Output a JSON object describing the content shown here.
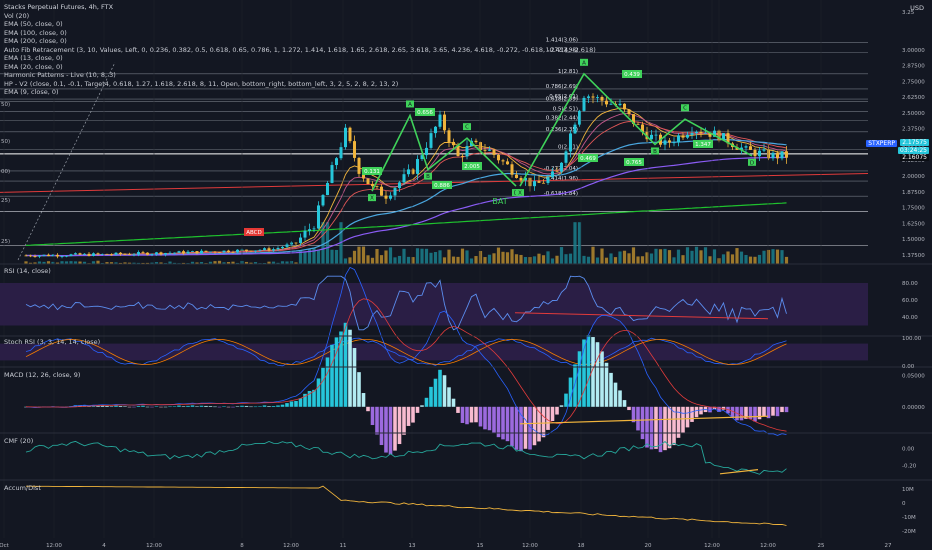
{
  "title": "Stacks Perpetual Futures, 4h, FTX",
  "legend_main": [
    "Vol (20)",
    "EMA (50, close, 0)",
    "EMA (100, close, 0)",
    "EMA (200, close, 0)",
    "Auto Fib Retracement (3, 10, Values, Left, 0, 0.236, 0.382, 0.5, 0.618, 0.65, 0.786, 1, 1.272, 1.414, 1.618, 1.65, 2.618, 2.65, 3.618, 3.65, 4.236, 4.618, -0.272, -0.618, -0.414, -2.618)",
    "EMA (13, close, 0)",
    "EMA (20, close, 0)",
    "Harmonic Patterns - Live (10, 8, 3)",
    "HP - V2 (close, 0.1, -0.1, Target4, 0.618, 1.27, 1.618, 2.618, 8, 11, Open, bottom_right, bottom_left, 3, 2, 5, 2, 8, 2, 13, 2)",
    "EMA (9, close, 0)"
  ],
  "currency": "USD",
  "symbol_tag": "STXPERP",
  "price_tag": "2.17575",
  "countdown": "03:24:25",
  "price_tag2": "2.16075",
  "price_axis": [
    "3.25",
    "3.00000",
    "2.87500",
    "2.75000",
    "2.62500",
    "2.50000",
    "2.37500",
    "2.25000",
    "2.12500",
    "2.00000",
    "1.87500",
    "1.75000",
    "1.62500",
    "1.50000",
    "1.37500"
  ],
  "left_axis_fragments": [
    "50)",
    "50)",
    "00)",
    "25)",
    "25)"
  ],
  "time_axis": [
    "Oct",
    "12:00",
    "4",
    "12:00",
    "8",
    "12:00",
    "11",
    "13",
    "15",
    "12:00",
    "18",
    "20",
    "12:00",
    "22",
    "12:00",
    "25",
    "27"
  ],
  "fib_levels": [
    "1.414(3.06)",
    "1.272(2.98)",
    "1(2.81)",
    "0.786(2.69)",
    "0.65(2.61)",
    "0.618(2.59)",
    "0.5(2.51)",
    "0.382(2.44)",
    "0.236(2.35)",
    "0(2.21)",
    "-0.272(2.04)",
    "-0.414(1.96)",
    "-0.618(1.84)"
  ],
  "pattern_labels": {
    "A1": "A",
    "B1": "B",
    "C1": "C",
    "D1": "D",
    "X1": "X",
    "r1": "0.131",
    "r2": "0.656",
    "r3": "2.005",
    "r4": "0.886",
    "X2": "X",
    "A2": "A",
    "B2": "B",
    "C2": "C",
    "D2": "D",
    "r5": "0.469",
    "r6": "0.439",
    "r7": "0.765",
    "r8": "1.347",
    "bat": "BAT",
    "abcd": "ABCD"
  },
  "rsi": {
    "legend": "RSI (14, close)",
    "axis": [
      "80.00",
      "60.00",
      "40.00"
    ]
  },
  "stoch": {
    "legend": "Stoch RSI (3, 3, 14, 14, close)",
    "axis": [
      "100.00",
      "0.00"
    ]
  },
  "macd": {
    "legend": "MACD (12, 26, close, 9)",
    "axis": [
      "0.05000",
      "0.00000"
    ]
  },
  "cmf": {
    "legend": "CMF (20)",
    "axis": [
      "0.00",
      "-0.20"
    ]
  },
  "accum": {
    "legend": "Accum/Dist",
    "axis": [
      "10M",
      "0",
      "-10M",
      "-20M"
    ]
  },
  "colors": {
    "bg": "#131722",
    "up": "#26c6da",
    "down": "#f0b43c",
    "pattern": "#3fd25a",
    "ema50": "#4aa7e0",
    "ema100": "#8b5cf6",
    "ema200": "#1fc22e",
    "ema13": "#c2578a",
    "ema20": "#e05757",
    "rsi_band": "#2a1e45",
    "accent_blue": "#2962ff"
  },
  "chart_data": {
    "type": "line",
    "title": "Stacks Perpetual Futures, 4h, FTX",
    "price": {
      "ylim": [
        1.35,
        3.3
      ],
      "close_now": 2.16075,
      "anchors": [
        {
          "t": 0,
          "v": 1.37
        },
        {
          "t": 20,
          "v": 1.38
        },
        {
          "t": 40,
          "v": 1.4
        },
        {
          "t": 55,
          "v": 1.42
        },
        {
          "t": 60,
          "v": 1.47
        },
        {
          "t": 64,
          "v": 1.62
        },
        {
          "t": 68,
          "v": 2.05
        },
        {
          "t": 71,
          "v": 2.35
        },
        {
          "t": 74,
          "v": 2.05
        },
        {
          "t": 77,
          "v": 1.9
        },
        {
          "t": 80,
          "v": 1.85
        },
        {
          "t": 86,
          "v": 2.05
        },
        {
          "t": 92,
          "v": 2.45
        },
        {
          "t": 96,
          "v": 2.15
        },
        {
          "t": 99,
          "v": 2.25
        },
        {
          "t": 103,
          "v": 2.2
        },
        {
          "t": 108,
          "v": 2.05
        },
        {
          "t": 113,
          "v": 1.92
        },
        {
          "t": 118,
          "v": 2.02
        },
        {
          "t": 124,
          "v": 2.65
        },
        {
          "t": 128,
          "v": 2.6
        },
        {
          "t": 132,
          "v": 2.55
        },
        {
          "t": 137,
          "v": 2.35
        },
        {
          "t": 142,
          "v": 2.25
        },
        {
          "t": 148,
          "v": 2.38
        },
        {
          "t": 154,
          "v": 2.32
        },
        {
          "t": 160,
          "v": 2.2
        },
        {
          "t": 166,
          "v": 2.16
        }
      ]
    },
    "harmonic_1": {
      "X": 1.88,
      "A": 2.48,
      "B": 2.05,
      "C": 2.3,
      "D": 1.92
    },
    "harmonic_2": {
      "X": 1.92,
      "A": 2.81,
      "B": 2.25,
      "C": 2.45,
      "D": 2.16
    },
    "rsi_range": [
      20,
      100
    ],
    "macd_range": [
      -0.04,
      0.06
    ],
    "cmf_range": [
      -0.35,
      0.15
    ],
    "accum_range": [
      -25,
      15
    ]
  }
}
